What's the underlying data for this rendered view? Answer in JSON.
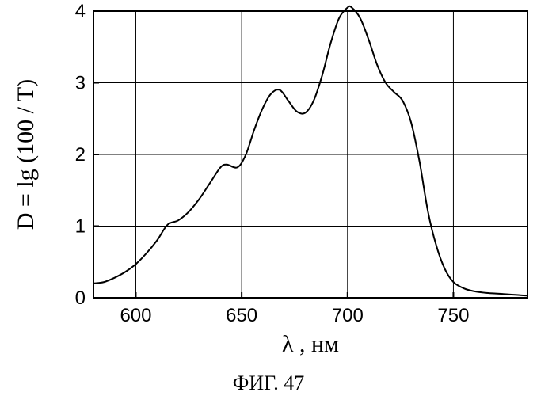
{
  "chart_data": {
    "type": "line",
    "xlabel": "λ , нм",
    "ylabel": "D = lg (100 / T)",
    "caption": "ФИГ. 47",
    "xlim": [
      580,
      785
    ],
    "ylim": [
      0,
      4
    ],
    "xticks": [
      600,
      650,
      700,
      750
    ],
    "yticks": [
      0,
      1,
      2,
      3,
      4
    ],
    "grid": true,
    "series": [
      {
        "x": [
          580,
          585,
          590,
          595,
          600,
          605,
          610,
          615,
          620,
          625,
          630,
          635,
          640,
          643,
          648,
          652,
          656,
          660,
          664,
          668,
          672,
          676,
          680,
          684,
          688,
          692,
          696,
          700,
          702,
          706,
          710,
          714,
          718,
          722,
          726,
          730,
          734,
          738,
          742,
          746,
          750,
          755,
          760,
          765,
          770,
          775,
          780,
          785
        ],
        "y": [
          0.2,
          0.22,
          0.28,
          0.36,
          0.47,
          0.62,
          0.8,
          1.02,
          1.08,
          1.2,
          1.38,
          1.6,
          1.82,
          1.86,
          1.82,
          2.0,
          2.35,
          2.65,
          2.85,
          2.9,
          2.75,
          2.6,
          2.58,
          2.75,
          3.1,
          3.55,
          3.9,
          4.05,
          4.05,
          3.9,
          3.6,
          3.25,
          3.0,
          2.87,
          2.75,
          2.45,
          1.9,
          1.2,
          0.72,
          0.4,
          0.22,
          0.13,
          0.09,
          0.07,
          0.06,
          0.05,
          0.04,
          0.03
        ]
      }
    ]
  }
}
